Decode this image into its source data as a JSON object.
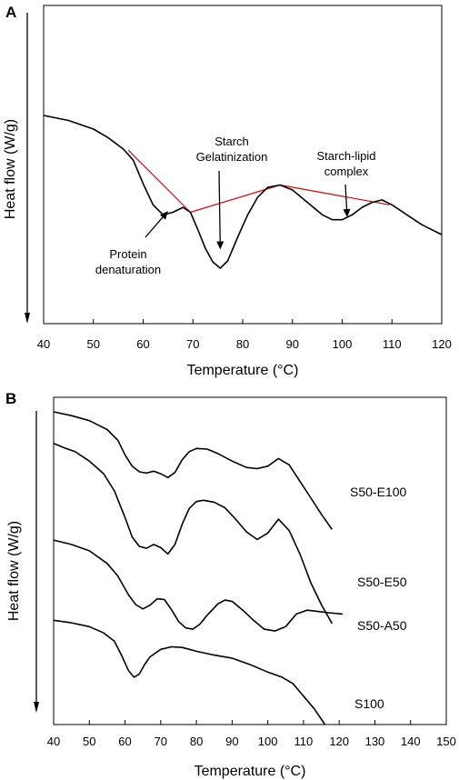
{
  "chart_data": [
    {
      "panel": "A",
      "type": "line",
      "xlabel": "Temperature (°C)",
      "ylabel": "Heat flow (W/g)",
      "xlim": [
        40,
        120
      ],
      "xticks": [
        "40",
        "50",
        "60",
        "70",
        "80",
        "90",
        "100",
        "110",
        "120"
      ],
      "series": [
        {
          "x": [
            40,
            45,
            50,
            53,
            56,
            58,
            60,
            62,
            64,
            66,
            68,
            69.5,
            71,
            72.5,
            74,
            75.5,
            77,
            79,
            81,
            83,
            85,
            87.5,
            90,
            93,
            96,
            98,
            100,
            102,
            104,
            106,
            108,
            110,
            113,
            116,
            120
          ],
          "y": [
            0.0,
            -0.04,
            -0.11,
            -0.18,
            -0.27,
            -0.36,
            -0.55,
            -0.72,
            -0.8,
            -0.78,
            -0.74,
            -0.78,
            -0.92,
            -1.07,
            -1.18,
            -1.23,
            -1.17,
            -0.98,
            -0.8,
            -0.66,
            -0.58,
            -0.56,
            -0.6,
            -0.7,
            -0.8,
            -0.84,
            -0.84,
            -0.8,
            -0.74,
            -0.7,
            -0.68,
            -0.72,
            -0.8,
            -0.88,
            -0.96
          ],
          "color": "#000000"
        }
      ],
      "baselines": [
        {
          "x": [
            57,
            69.5
          ],
          "y": [
            -0.28,
            -0.78
          ],
          "color": "#e00000"
        },
        {
          "x": [
            69.5,
            87.5
          ],
          "y": [
            -0.78,
            -0.56
          ],
          "color": "#e00000"
        },
        {
          "x": [
            87.5,
            109.5
          ],
          "y": [
            -0.56,
            -0.72
          ],
          "color": "#e00000"
        }
      ],
      "annotations": [
        {
          "lines": [
            "Starch",
            "Gelatinization"
          ],
          "arrow_to": [
            75.5,
            -1.08
          ]
        },
        {
          "lines": [
            "Starch-lipid",
            "complex"
          ],
          "arrow_to": [
            101,
            -0.82
          ]
        },
        {
          "lines": [
            "Protein",
            "denaturation"
          ],
          "arrow_to": [
            65,
            -0.77
          ]
        }
      ]
    },
    {
      "panel": "B",
      "type": "line",
      "xlabel": "Temperature (°C)",
      "ylabel": "Heat flow (W/g)",
      "xlim": [
        40,
        150
      ],
      "xticks": [
        "40",
        "50",
        "60",
        "70",
        "80",
        "90",
        "100",
        "110",
        "120",
        "130",
        "140",
        "150"
      ],
      "series": [
        {
          "name": "S50-E100",
          "x": [
            40,
            45,
            50,
            55,
            58,
            60,
            62,
            64,
            66,
            68,
            70,
            72,
            74,
            76,
            78,
            80,
            83,
            86,
            90,
            94,
            97,
            100,
            103,
            106,
            109,
            112,
            115,
            118
          ],
          "y": [
            5.0,
            4.4,
            3.6,
            2.2,
            0.5,
            -1.8,
            -3.6,
            -4.5,
            -4.7,
            -4.4,
            -4.8,
            -5.4,
            -4.6,
            -2.6,
            -1.3,
            -0.8,
            -0.9,
            -1.6,
            -2.8,
            -3.8,
            -4.0,
            -3.6,
            -2.4,
            -3.4,
            -6.0,
            -8.6,
            -11.2,
            -13.6
          ],
          "color": "#000000"
        },
        {
          "name": "S50-E50",
          "x": [
            40,
            43,
            46,
            50,
            54,
            57,
            60,
            62,
            64,
            66,
            68,
            70,
            72,
            74,
            76,
            78,
            80,
            82,
            85,
            88,
            91,
            94,
            97,
            100,
            103,
            106,
            109,
            112,
            115,
            118
          ],
          "y": [
            0.0,
            -0.7,
            -1.3,
            -2.8,
            -4.8,
            -7.5,
            -11.7,
            -14.8,
            -16.3,
            -16.6,
            -16.0,
            -16.5,
            -17.5,
            -16.0,
            -12.8,
            -10.3,
            -9.2,
            -9.0,
            -9.3,
            -10.2,
            -12.0,
            -14.0,
            -15.2,
            -14.2,
            -12.0,
            -13.8,
            -17.5,
            -22.0,
            -25.5,
            -28.5
          ],
          "color": "#000000"
        },
        {
          "name": "S50-A50",
          "x": [
            40,
            45,
            50,
            55,
            58,
            61,
            63,
            65,
            67,
            69,
            71,
            73,
            75,
            77,
            79,
            81,
            83,
            86,
            88,
            90,
            93,
            96,
            99,
            102,
            105,
            108,
            111,
            114,
            117,
            121
          ],
          "y": [
            -15.3,
            -16.0,
            -17.0,
            -19.0,
            -21.0,
            -24.0,
            -25.5,
            -26.2,
            -25.6,
            -24.6,
            -24.7,
            -26.3,
            -28.2,
            -29.2,
            -29.4,
            -28.6,
            -27.2,
            -25.4,
            -24.8,
            -25.0,
            -26.4,
            -28.0,
            -29.4,
            -29.7,
            -29.0,
            -27.0,
            -26.4,
            -26.6,
            -26.8,
            -27.0
          ],
          "color": "#000000"
        },
        {
          "name": "S100",
          "x": [
            40,
            45,
            50,
            54,
            57,
            59,
            61,
            62.5,
            64,
            65.5,
            67,
            70,
            73,
            76,
            80,
            85,
            90,
            95,
            100,
            104,
            107,
            110,
            113,
            116
          ],
          "y": [
            -28.0,
            -28.4,
            -29.0,
            -30.0,
            -31.3,
            -33.5,
            -36.0,
            -37.0,
            -36.5,
            -35.0,
            -33.8,
            -32.6,
            -32.2,
            -32.3,
            -32.9,
            -33.5,
            -34.0,
            -35.0,
            -36.2,
            -37.0,
            -38.0,
            -40.0,
            -42.0,
            -44.5
          ],
          "color": "#000000"
        }
      ]
    }
  ]
}
